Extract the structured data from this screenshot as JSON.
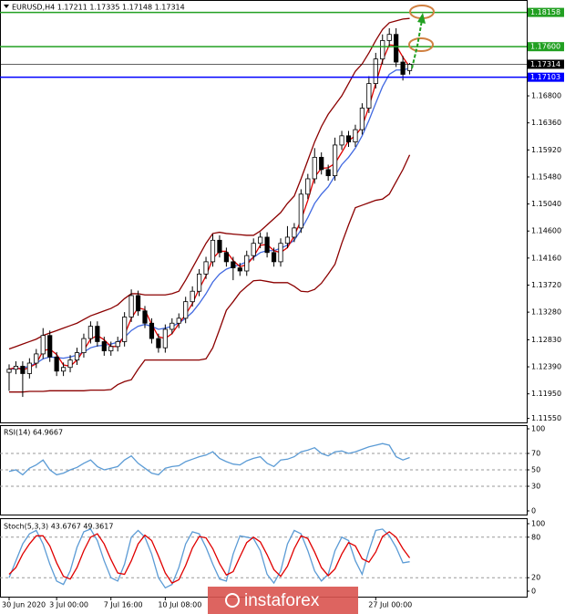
{
  "chart_data": [
    {
      "type": "candlestick",
      "title": "EURUSD,H4  1.17211 1.17335 1.17148 1.17314",
      "categories": [
        "30 Jun 2020",
        null,
        null,
        null,
        null,
        null,
        null,
        "3 Jul 00:00",
        null,
        null,
        null,
        null,
        null,
        null,
        null,
        "7 Jul 16:00",
        null,
        null,
        null,
        null,
        null,
        null,
        null,
        "10 Jul 08:00",
        null,
        null,
        null,
        null,
        null,
        null,
        null,
        null,
        null,
        null,
        null,
        null,
        null,
        null,
        null,
        null,
        null,
        null,
        null,
        null,
        null,
        null,
        null,
        null,
        null,
        null,
        null,
        null,
        null,
        null,
        "27 Jul 00:00",
        null,
        null,
        null,
        null,
        null
      ],
      "ohlc": [
        [
          1.123,
          1.1243,
          1.12,
          1.1235
        ],
        [
          1.1235,
          1.1248,
          1.1227,
          1.124
        ],
        [
          1.124,
          1.1248,
          1.119,
          1.1228
        ],
        [
          1.1228,
          1.1253,
          1.122,
          1.1245
        ],
        [
          1.1245,
          1.1268,
          1.1237,
          1.126
        ],
        [
          1.126,
          1.1302,
          1.1252,
          1.129
        ],
        [
          1.129,
          1.1298,
          1.1247,
          1.1255
        ],
        [
          1.1255,
          1.1263,
          1.1224,
          1.1232
        ],
        [
          1.1232,
          1.1246,
          1.1224,
          1.1238
        ],
        [
          1.1238,
          1.1258,
          1.123,
          1.125
        ],
        [
          1.125,
          1.127,
          1.1242,
          1.1262
        ],
        [
          1.1262,
          1.1293,
          1.1254,
          1.1285
        ],
        [
          1.1285,
          1.1313,
          1.1277,
          1.1305
        ],
        [
          1.1305,
          1.1313,
          1.1272,
          1.128
        ],
        [
          1.128,
          1.1288,
          1.1257,
          1.1265
        ],
        [
          1.1265,
          1.128,
          1.1257,
          1.1272
        ],
        [
          1.1272,
          1.1288,
          1.1264,
          1.128
        ],
        [
          1.128,
          1.1328,
          1.1272,
          1.132
        ],
        [
          1.132,
          1.1365,
          1.1312,
          1.1355
        ],
        [
          1.1355,
          1.1363,
          1.1322,
          1.133
        ],
        [
          1.133,
          1.1338,
          1.1302,
          1.131
        ],
        [
          1.131,
          1.1318,
          1.1277,
          1.1285
        ],
        [
          1.1285,
          1.1293,
          1.1262,
          1.127
        ],
        [
          1.127,
          1.1308,
          1.1262,
          1.13
        ],
        [
          1.13,
          1.1318,
          1.1292,
          1.131
        ],
        [
          1.131,
          1.1326,
          1.1302,
          1.1318
        ],
        [
          1.1318,
          1.1353,
          1.131,
          1.1345
        ],
        [
          1.1345,
          1.137,
          1.1337,
          1.1362
        ],
        [
          1.1362,
          1.1398,
          1.1354,
          1.139
        ],
        [
          1.139,
          1.1418,
          1.1382,
          1.141
        ],
        [
          1.141,
          1.1455,
          1.1402,
          1.1445
        ],
        [
          1.1445,
          1.1453,
          1.1417,
          1.1425
        ],
        [
          1.1425,
          1.1433,
          1.1402,
          1.141
        ],
        [
          1.141,
          1.1418,
          1.138,
          1.14
        ],
        [
          1.14,
          1.1408,
          1.1387,
          1.1395
        ],
        [
          1.1395,
          1.1428,
          1.1387,
          1.142
        ],
        [
          1.142,
          1.1448,
          1.1412,
          1.144
        ],
        [
          1.144,
          1.1458,
          1.1432,
          1.145
        ],
        [
          1.145,
          1.1458,
          1.1417,
          1.1425
        ],
        [
          1.1425,
          1.1433,
          1.1402,
          1.141
        ],
        [
          1.141,
          1.1448,
          1.1402,
          1.144
        ],
        [
          1.144,
          1.1468,
          1.1432,
          1.145
        ],
        [
          1.145,
          1.1473,
          1.1442,
          1.1465
        ],
        [
          1.1465,
          1.1528,
          1.1457,
          1.152
        ],
        [
          1.152,
          1.1553,
          1.1512,
          1.1545
        ],
        [
          1.1545,
          1.1595,
          1.1537,
          1.158
        ],
        [
          1.158,
          1.1588,
          1.1552,
          1.156
        ],
        [
          1.156,
          1.1568,
          1.1542,
          1.155
        ],
        [
          1.155,
          1.1612,
          1.1542,
          1.16
        ],
        [
          1.16,
          1.1623,
          1.1592,
          1.1615
        ],
        [
          1.1615,
          1.1623,
          1.1597,
          1.1605
        ],
        [
          1.1605,
          1.1633,
          1.1597,
          1.1625
        ],
        [
          1.1625,
          1.1668,
          1.1617,
          1.166
        ],
        [
          1.166,
          1.1712,
          1.1652,
          1.17
        ],
        [
          1.17,
          1.175,
          1.1692,
          1.174
        ],
        [
          1.174,
          1.178,
          1.1732,
          1.177
        ],
        [
          1.177,
          1.179,
          1.176,
          1.178
        ],
        [
          1.178,
          1.179,
          1.1727,
          1.1735
        ],
        [
          1.1735,
          1.1745,
          1.1705,
          1.1715
        ],
        [
          1.17211,
          1.17335,
          1.17148,
          1.17314
        ]
      ],
      "up_color": "#ffffff",
      "down_color": "#000000",
      "lines": [
        {
          "color": "#8b0000",
          "values": [
            1.1268,
            1.1272,
            1.1276,
            1.128,
            1.1284,
            1.129,
            1.1294,
            1.1298,
            1.1302,
            1.1306,
            1.131,
            1.1316,
            1.1322,
            1.1326,
            1.133,
            1.1334,
            1.134,
            1.135,
            1.1358,
            1.1358,
            1.1356,
            1.1356,
            1.1356,
            1.1356,
            1.1358,
            1.1362,
            1.138,
            1.14,
            1.142,
            1.144,
            1.1456,
            1.1458,
            1.1456,
            1.1455,
            1.1454,
            1.1453,
            1.1453,
            1.146,
            1.147,
            1.148,
            1.149,
            1.1505,
            1.1517,
            1.1545,
            1.1575,
            1.1605,
            1.163,
            1.165,
            1.1665,
            1.168,
            1.17,
            1.172,
            1.1732,
            1.175,
            1.177,
            1.1788,
            1.1799,
            1.1802,
            1.1805,
            1.1806
          ]
        },
        {
          "color": "#8b0000",
          "values": [
            1.1198,
            1.1198,
            1.1198,
            1.1199,
            1.1199,
            1.1199,
            1.12,
            1.12,
            1.12,
            1.12,
            1.12,
            1.12,
            1.1201,
            1.1201,
            1.1201,
            1.1202,
            1.121,
            1.1215,
            1.1218,
            1.1235,
            1.125,
            1.125,
            1.125,
            1.125,
            1.125,
            1.125,
            1.125,
            1.125,
            1.125,
            1.1252,
            1.127,
            1.13,
            1.1331,
            1.1345,
            1.136,
            1.137,
            1.1379,
            1.138,
            1.1378,
            1.1376,
            1.1376,
            1.1376,
            1.137,
            1.1362,
            1.1361,
            1.1365,
            1.1375,
            1.139,
            1.1406,
            1.144,
            1.147,
            1.1498,
            1.1502,
            1.1506,
            1.151,
            1.1512,
            1.152,
            1.154,
            1.156,
            1.1584
          ]
        },
        {
          "color": "#4169e1",
          "values": [
            1.1235,
            1.1236,
            1.1237,
            1.124,
            1.1245,
            1.1252,
            1.1255,
            1.1254,
            1.1253,
            1.1255,
            1.1258,
            1.1263,
            1.127,
            1.1273,
            1.1274,
            1.1276,
            1.1279,
            1.1287,
            1.1298,
            1.1305,
            1.1308,
            1.1305,
            1.13,
            1.1302,
            1.1305,
            1.131,
            1.1318,
            1.1328,
            1.1342,
            1.1358,
            1.1377,
            1.139,
            1.1398,
            1.1402,
            1.1405,
            1.141,
            1.1417,
            1.1425,
            1.1428,
            1.1428,
            1.1432,
            1.1437,
            1.1445,
            1.1462,
            1.1482,
            1.1505,
            1.152,
            1.1532,
            1.155,
            1.1568,
            1.158,
            1.1595,
            1.1615,
            1.164,
            1.1668,
            1.1695,
            1.1715,
            1.1722,
            1.1722,
            1.1725
          ]
        },
        {
          "color": "#e00000",
          "values": [
            1.1235,
            1.1238,
            1.1234,
            1.1238,
            1.1244,
            1.1265,
            1.1268,
            1.1259,
            1.1242,
            1.124,
            1.125,
            1.1266,
            1.1284,
            1.129,
            1.1283,
            1.1272,
            1.1272,
            1.1291,
            1.1318,
            1.1335,
            1.1332,
            1.1308,
            1.1288,
            1.1285,
            1.1293,
            1.1309,
            1.1324,
            1.1342,
            1.1366,
            1.1387,
            1.1415,
            1.1427,
            1.1427,
            1.1412,
            1.1402,
            1.1405,
            1.1418,
            1.1437,
            1.1438,
            1.1428,
            1.1425,
            1.1433,
            1.1452,
            1.1478,
            1.151,
            1.1548,
            1.1562,
            1.1563,
            1.157,
            1.1588,
            1.1607,
            1.1615,
            1.163,
            1.1662,
            1.17,
            1.1737,
            1.1763,
            1.1762,
            1.1743,
            1.1727
          ]
        }
      ],
      "ylim": [
        1.115,
        1.1836
      ],
      "yticks": [
        {
          "value": 1.168,
          "label": "1.16800"
        },
        {
          "value": 1.1636,
          "label": "1.16360"
        },
        {
          "value": 1.1592,
          "label": "1.15920"
        },
        {
          "value": 1.1548,
          "label": "1.15480"
        },
        {
          "value": 1.1504,
          "label": "1.15040"
        },
        {
          "value": 1.146,
          "label": "1.14600"
        },
        {
          "value": 1.1416,
          "label": "1.14160"
        },
        {
          "value": 1.1372,
          "label": "1.13720"
        },
        {
          "value": 1.1328,
          "label": "1.13280"
        },
        {
          "value": 1.1283,
          "label": "1.12830"
        },
        {
          "value": 1.1239,
          "label": "1.12390"
        },
        {
          "value": 1.1195,
          "label": "1.11950"
        },
        {
          "value": 1.1155,
          "label": "1.11550"
        }
      ],
      "levels": [
        {
          "value": 1.18158,
          "label": "1.18158",
          "color": "#22a022"
        },
        {
          "value": 1.176,
          "label": "1.17600",
          "color": "#22a022"
        },
        {
          "value": 1.17314,
          "label": "1.17314",
          "color": "#000000"
        },
        {
          "value": 1.17103,
          "label": "1.17103",
          "color": "#0000ff"
        }
      ],
      "watermark": "instaforex"
    },
    {
      "type": "line",
      "title": "RSI(14) 64.9667",
      "series": [
        {
          "color": "#5b9bd5",
          "values": [
            48,
            50,
            44,
            52,
            56,
            62,
            50,
            44,
            46,
            50,
            53,
            58,
            62,
            54,
            50,
            52,
            54,
            62,
            67,
            58,
            52,
            46,
            44,
            52,
            54,
            55,
            60,
            63,
            66,
            68,
            72,
            64,
            60,
            57,
            56,
            61,
            64,
            66,
            58,
            54,
            62,
            63,
            66,
            72,
            74,
            77,
            70,
            67,
            72,
            73,
            70,
            72,
            75,
            78,
            80,
            82,
            80,
            66,
            62,
            64.9667
          ]
        }
      ],
      "ylim": [
        0,
        100
      ],
      "yticks": [
        100,
        70,
        50,
        30,
        0
      ],
      "grid": true
    },
    {
      "type": "line",
      "title": "Stoch(5,3,3) 43.6767 49.3617",
      "series": [
        {
          "color": "#5b9bd5",
          "values": [
            20,
            45,
            70,
            85,
            90,
            70,
            40,
            15,
            10,
            30,
            65,
            88,
            92,
            75,
            45,
            20,
            15,
            40,
            80,
            90,
            80,
            55,
            20,
            5,
            10,
            35,
            70,
            88,
            85,
            65,
            40,
            18,
            15,
            55,
            82,
            80,
            78,
            60,
            25,
            12,
            30,
            70,
            90,
            85,
            60,
            30,
            15,
            25,
            60,
            80,
            75,
            45,
            25,
            60,
            90,
            92,
            82,
            65,
            42,
            43.6767
          ]
        },
        {
          "color": "#e00000",
          "values": [
            25,
            35,
            55,
            70,
            82,
            82,
            67,
            42,
            22,
            18,
            35,
            60,
            80,
            85,
            70,
            47,
            27,
            25,
            45,
            70,
            83,
            75,
            52,
            27,
            12,
            17,
            38,
            64,
            81,
            79,
            63,
            41,
            24,
            29,
            51,
            72,
            80,
            73,
            54,
            32,
            22,
            37,
            63,
            82,
            78,
            58,
            35,
            23,
            33,
            55,
            72,
            67,
            48,
            43,
            58,
            81,
            88,
            80,
            63,
            49.3617
          ]
        }
      ],
      "ylim": [
        0,
        100
      ],
      "yticks": [
        100,
        80,
        20,
        0
      ],
      "grid": true
    }
  ]
}
